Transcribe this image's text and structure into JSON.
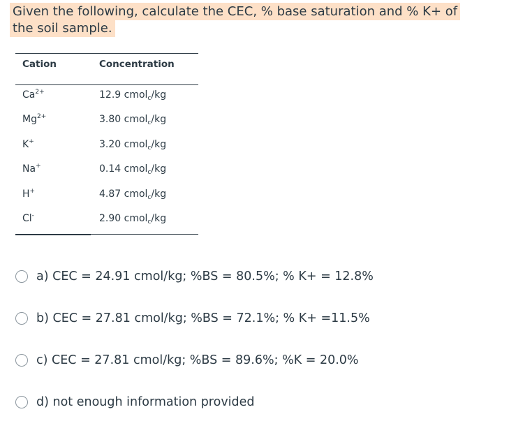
{
  "question": "Given the following, calculate the CEC, % base saturation and % K+ of the soil sample.",
  "table": {
    "headers": [
      "Cation",
      "Concentration"
    ],
    "rows": [
      {
        "ion": "Ca",
        "charge": "2+",
        "value": "12.9 cmol",
        "sub": "c",
        "unit": "/kg"
      },
      {
        "ion": "Mg",
        "charge": "2+",
        "value": "3.80 cmol",
        "sub": "c",
        "unit": "/kg"
      },
      {
        "ion": "K",
        "charge": "+",
        "value": "3.20 cmol",
        "sub": "c",
        "unit": "/kg"
      },
      {
        "ion": "Na",
        "charge": "+",
        "value": "0.14 cmol",
        "sub": "c",
        "unit": "/kg"
      },
      {
        "ion": "H",
        "charge": "+",
        "value": "4.87 cmol",
        "sub": "c",
        "unit": "/kg"
      },
      {
        "ion": "Cl",
        "charge": "-",
        "value": "2.90 cmol",
        "sub": "c",
        "unit": "/kg"
      }
    ]
  },
  "options": [
    "a) CEC = 24.91 cmol/kg; %BS = 80.5%; % K+ = 12.8%",
    "b) CEC = 27.81 cmol/kg; %BS = 72.1%; % K+ =11.5%",
    "c) CEC = 27.81 cmol/kg; %BS = 89.6%; %K = 20.0%",
    "d) not enough information provided"
  ]
}
